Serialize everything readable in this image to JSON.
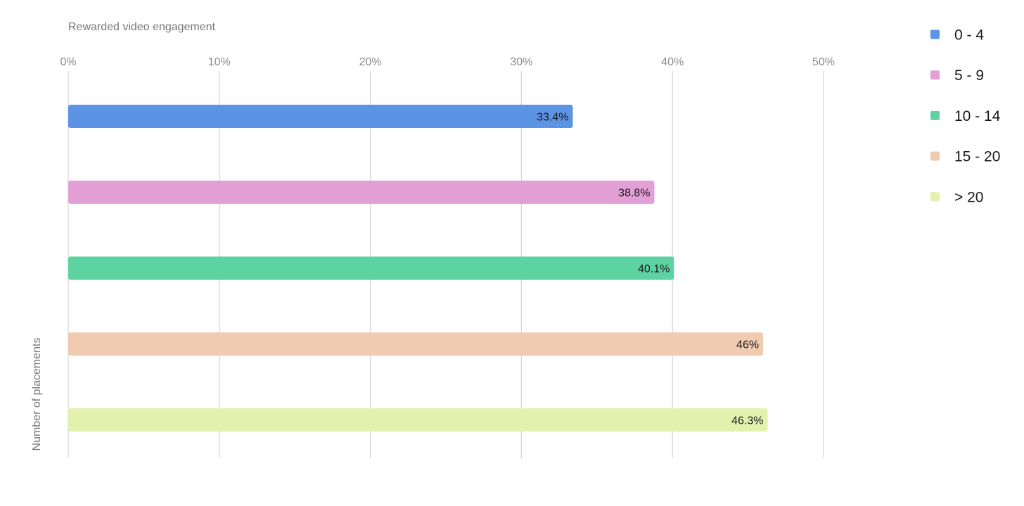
{
  "chart_data": {
    "type": "bar",
    "orientation": "horizontal",
    "xlabel": "Rewarded video engagement",
    "ylabel": "Number of placements",
    "xlim": [
      0,
      50
    ],
    "x_ticks": [
      "0%",
      "10%",
      "20%",
      "30%",
      "40%",
      "50%"
    ],
    "x_tick_values": [
      0,
      10,
      20,
      30,
      40,
      50
    ],
    "grid": true,
    "legend_position": "top-right",
    "series": [
      {
        "name": "0 - 4",
        "value": 33.4,
        "label": "33.4%",
        "color": "#5b93e5"
      },
      {
        "name": "5 - 9",
        "value": 38.8,
        "label": "38.8%",
        "color": "#e29fd6"
      },
      {
        "name": "10 - 14",
        "value": 40.1,
        "label": "40.1%",
        "color": "#5dd3a2"
      },
      {
        "name": "15 - 20",
        "value": 46,
        "label": "46%",
        "color": "#f0cbb1"
      },
      {
        "name": "> 20",
        "value": 46.3,
        "label": "46.3%",
        "color": "#e4f0ae"
      }
    ]
  }
}
